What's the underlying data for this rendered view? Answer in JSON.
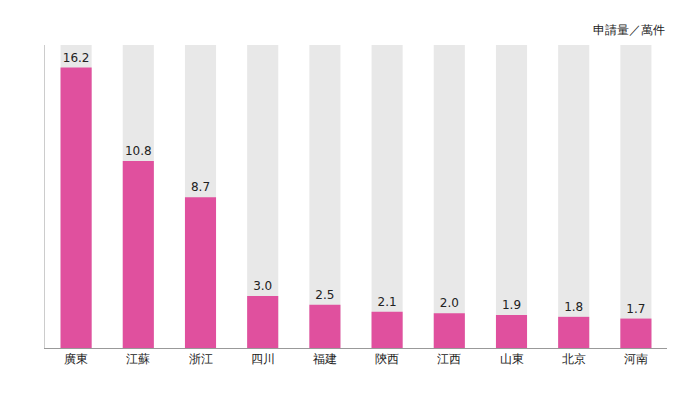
{
  "chart_data": {
    "type": "bar",
    "ylabel": "申請量／萬件",
    "categories": [
      "廣東",
      "江蘇",
      "浙江",
      "四川",
      "福建",
      "陝西",
      "江西",
      "山東",
      "北京",
      "河南"
    ],
    "values": [
      16.2,
      10.8,
      8.7,
      3.0,
      2.5,
      2.1,
      2.0,
      1.9,
      1.8,
      1.7
    ],
    "value_labels": [
      "16.2",
      "10.8",
      "8.7",
      "3.0",
      "2.5",
      "2.1",
      "2.0",
      "1.9",
      "1.8",
      "1.7"
    ],
    "color": "#e0509e",
    "ylim": [
      0,
      17.5
    ],
    "yticks": [],
    "grid": false,
    "data_labels": true,
    "tick_labels": "x"
  }
}
